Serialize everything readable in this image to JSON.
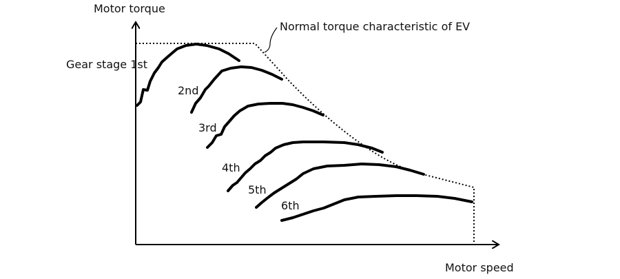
{
  "axes": {
    "y_label": "Motor torque",
    "x_label": "Motor speed"
  },
  "annotation": {
    "normal_torque": "Normal torque characteristic of EV"
  },
  "gears": [
    {
      "id": "1st",
      "label": "Gear stage 1st"
    },
    {
      "id": "2nd",
      "label": "2nd"
    },
    {
      "id": "3rd",
      "label": "3rd"
    },
    {
      "id": "4th",
      "label": "4th"
    },
    {
      "id": "5th",
      "label": "5th"
    },
    {
      "id": "6th",
      "label": "6th"
    }
  ]
}
